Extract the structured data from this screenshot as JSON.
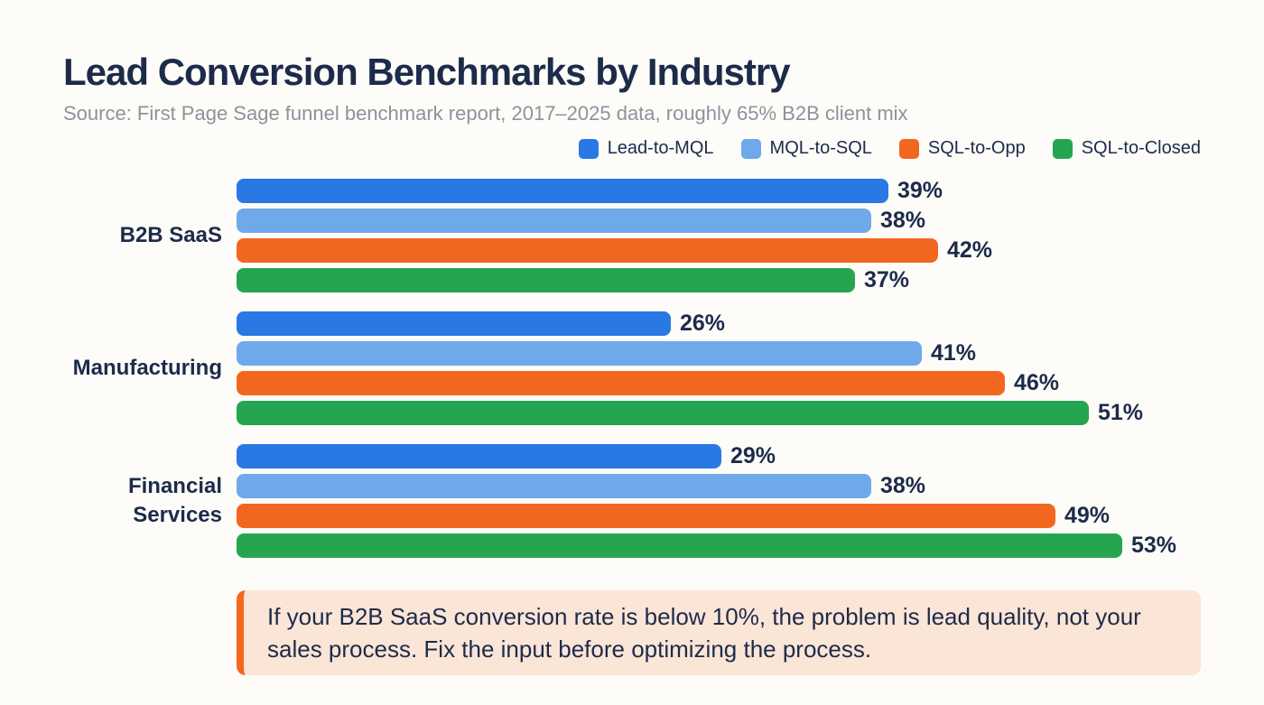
{
  "header": {
    "title": "Lead Conversion Benchmarks by Industry",
    "subtitle": "Source: First Page Sage funnel benchmark report, 2017–2025 data, roughly 65% B2B client mix"
  },
  "colors": {
    "page_background": "#fdfcf8",
    "text_navy": "#1d2b4a",
    "subtitle_gray": "#8e929c",
    "lead_to_mql_blue": "#2a78e4",
    "mql_to_sql_lightblue": "#6fa9e9",
    "sql_to_opp_orange": "#f2671f",
    "sql_to_closed_green": "#26a550",
    "callout_background": "#fbe5d6",
    "callout_border": "#f4671f"
  },
  "chart_data": {
    "type": "bar",
    "orientation": "horizontal",
    "title": "Lead Conversion Benchmarks by Industry",
    "subtitle": "Source: First Page Sage funnel benchmark report, 2017–2025 data, roughly 65% B2B client mix",
    "categories": [
      "B2B SaaS",
      "Manufacturing",
      "Financial Services"
    ],
    "series": [
      {
        "name": "Lead-to-MQL",
        "color": "#2a78e4",
        "values": [
          39,
          26,
          29
        ]
      },
      {
        "name": "MQL-to-SQL",
        "color": "#6fa9e9",
        "values": [
          38,
          41,
          38
        ]
      },
      {
        "name": "SQL-to-Opp",
        "color": "#f2671f",
        "values": [
          42,
          46,
          49
        ]
      },
      {
        "name": "SQL-to-Closed",
        "color": "#26a550",
        "values": [
          37,
          51,
          53
        ]
      }
    ],
    "value_suffix": "%",
    "xlim": [
      0,
      57
    ],
    "grid": false,
    "legend_position": "top-right",
    "value_labels": "outside-end"
  },
  "callout": {
    "text": "If your B2B SaaS conversion rate is below 10%, the problem is lead quality, not your sales process. Fix the input before optimizing the process.",
    "background": "#fbe5d6",
    "border_color": "#f4671f"
  }
}
